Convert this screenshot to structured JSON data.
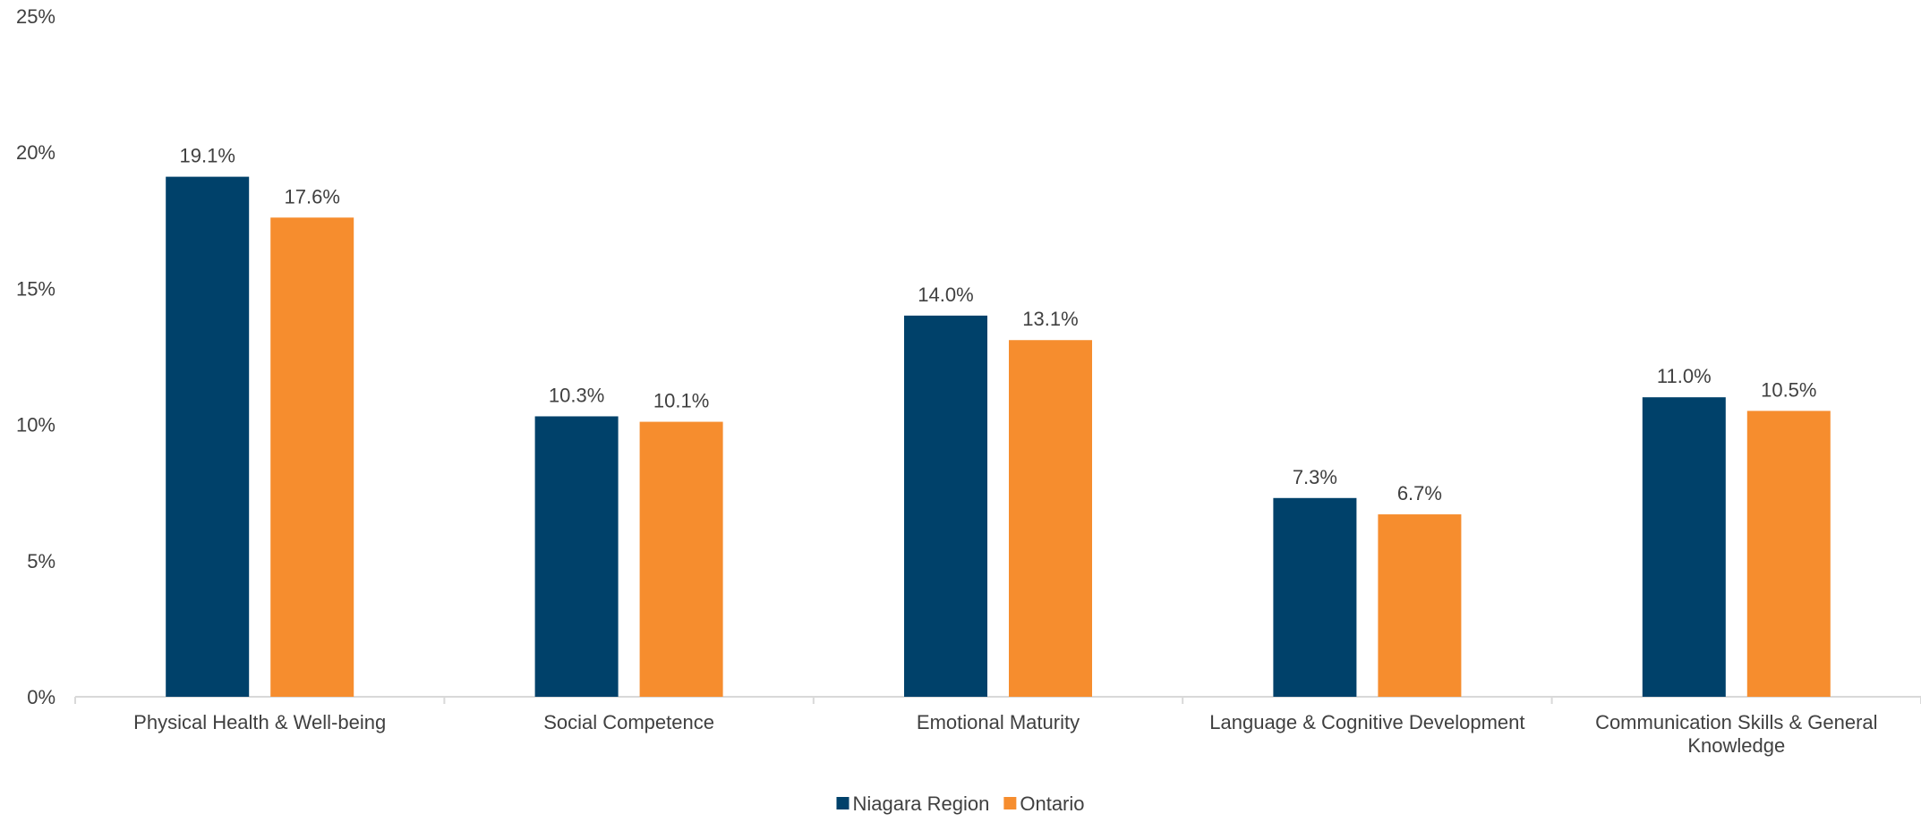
{
  "chart_data": {
    "type": "bar",
    "title": "",
    "xlabel": "",
    "ylabel": "",
    "categories": [
      [
        "Physical Health & Well-being"
      ],
      [
        "Social Competence"
      ],
      [
        "Emotional Maturity"
      ],
      [
        "Language & Cognitive Development"
      ],
      [
        "Communication Skills & General",
        "Knowledge"
      ]
    ],
    "series": [
      {
        "name": "Niagara Region",
        "color": "#00416A",
        "values": [
          19.1,
          10.3,
          14.0,
          7.3,
          11.0
        ],
        "labels": [
          "19.1%",
          "10.3%",
          "14.0%",
          "7.3%",
          "11.0%"
        ]
      },
      {
        "name": "Ontario",
        "color": "#F68D2E",
        "values": [
          17.6,
          10.1,
          13.1,
          6.7,
          10.5
        ],
        "labels": [
          "17.6%",
          "10.1%",
          "13.1%",
          "6.7%",
          "10.5%"
        ]
      }
    ],
    "ylim": [
      0,
      25
    ],
    "yticks": [
      {
        "value": 0,
        "label": "0%"
      },
      {
        "value": 5,
        "label": "5%"
      },
      {
        "value": 10,
        "label": "10%"
      },
      {
        "value": 15,
        "label": "15%"
      },
      {
        "value": 20,
        "label": "20%"
      },
      {
        "value": 25,
        "label": "25%"
      }
    ],
    "grid": false,
    "legend": "bottom-center"
  }
}
